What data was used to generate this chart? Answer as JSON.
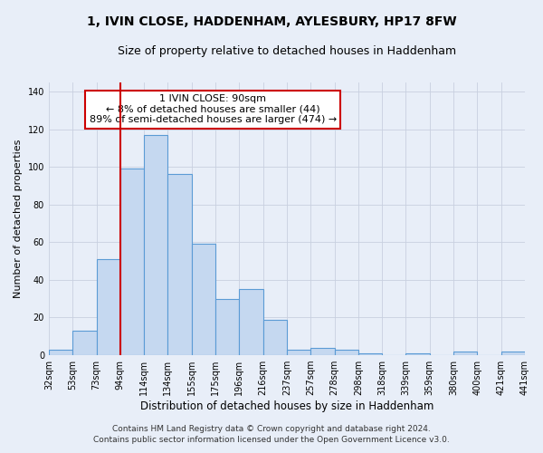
{
  "title": "1, IVIN CLOSE, HADDENHAM, AYLESBURY, HP17 8FW",
  "subtitle": "Size of property relative to detached houses in Haddenham",
  "xlabel": "Distribution of detached houses by size in Haddenham",
  "ylabel": "Number of detached properties",
  "footer_line1": "Contains HM Land Registry data © Crown copyright and database right 2024.",
  "footer_line2": "Contains public sector information licensed under the Open Government Licence v3.0.",
  "bar_labels": [
    "32sqm",
    "53sqm",
    "73sqm",
    "94sqm",
    "114sqm",
    "134sqm",
    "155sqm",
    "175sqm",
    "196sqm",
    "216sqm",
    "237sqm",
    "257sqm",
    "278sqm",
    "298sqm",
    "318sqm",
    "339sqm",
    "359sqm",
    "380sqm",
    "400sqm",
    "421sqm",
    "441sqm"
  ],
  "bar_values": [
    3,
    13,
    51,
    99,
    117,
    96,
    59,
    30,
    35,
    19,
    3,
    4,
    3,
    1,
    0,
    1,
    0,
    2,
    0,
    2
  ],
  "bar_color": "#c5d8f0",
  "bar_edge_color": "#5b9bd5",
  "annotation_text": "1 IVIN CLOSE: 90sqm\n← 8% of detached houses are smaller (44)\n89% of semi-detached houses are larger (474) →",
  "annotation_box_color": "#ffffff",
  "annotation_box_edge_color": "#cc0000",
  "vline_color": "#cc0000",
  "ylim": [
    0,
    145
  ],
  "yticks": [
    0,
    20,
    40,
    60,
    80,
    100,
    120,
    140
  ],
  "background_color": "#e8eef8",
  "plot_background_color": "#e8eef8",
  "grid_color": "#c8d0e0",
  "title_fontsize": 10,
  "subtitle_fontsize": 9,
  "xlabel_fontsize": 8.5,
  "ylabel_fontsize": 8,
  "tick_fontsize": 7,
  "annotation_fontsize": 8,
  "footer_fontsize": 6.5
}
